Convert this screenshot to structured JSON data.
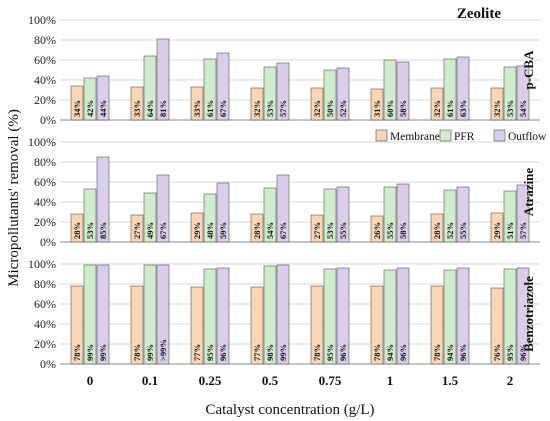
{
  "chart_data": {
    "type": "bar",
    "title": "Zeolite",
    "xlabel": "Catalyst concentration (g/L)",
    "ylabel": "Micropollutants' removal (%)",
    "categories": [
      "0",
      "0.1",
      "0.25",
      "0.5",
      "0.75",
      "1",
      "1.5",
      "2"
    ],
    "ylim": [
      0,
      100
    ],
    "yticks": [
      "0%",
      "20%",
      "40%",
      "60%",
      "80%",
      "100%"
    ],
    "legend": [
      "Membrane",
      "PFR",
      "Outflow"
    ],
    "colors": {
      "Membrane": "#f9d5b3",
      "PFR": "#cfeccb",
      "Outflow": "#d9cdeb",
      "edge": "#555555",
      "grid": "#d9d9d9"
    },
    "panels": [
      {
        "name": "p-CBA",
        "series": [
          {
            "name": "Membrane",
            "values": [
              34,
              33,
              33,
              32,
              32,
              31,
              32,
              32
            ],
            "labels": [
              "34%",
              "33%",
              "33%",
              "32%",
              "32%",
              "31%",
              "32%",
              "32%"
            ]
          },
          {
            "name": "PFR",
            "values": [
              42,
              64,
              61,
              53,
              50,
              60,
              61,
              53
            ],
            "labels": [
              "42%",
              "64%",
              "61%",
              "53%",
              "50%",
              "60%",
              "61%",
              "53%"
            ]
          },
          {
            "name": "Outflow",
            "values": [
              44,
              81,
              67,
              57,
              52,
              58,
              63,
              54
            ],
            "labels": [
              "44%",
              "81%",
              "67%",
              "57%",
              "52%",
              "58%",
              "63%",
              "54%"
            ]
          }
        ]
      },
      {
        "name": "Atrazine",
        "series": [
          {
            "name": "Membrane",
            "values": [
              28,
              27,
              29,
              28,
              27,
              26,
              28,
              29
            ],
            "labels": [
              "28%",
              "27%",
              "29%",
              "28%",
              "27%",
              "26%",
              "28%",
              "29%"
            ]
          },
          {
            "name": "PFR",
            "values": [
              53,
              49,
              48,
              54,
              53,
              55,
              52,
              51
            ],
            "labels": [
              "53%",
              "49%",
              "48%",
              "54%",
              "53%",
              "55%",
              "52%",
              "51%"
            ]
          },
          {
            "name": "Outflow",
            "values": [
              85,
              67,
              59,
              67,
              55,
              58,
              55,
              57
            ],
            "labels": [
              "85%",
              "67%",
              "59%",
              "67%",
              "55%",
              "58%",
              "55%",
              "57%"
            ]
          }
        ]
      },
      {
        "name": "Benzotriazole",
        "series": [
          {
            "name": "Membrane",
            "values": [
              78,
              78,
              77,
              77,
              78,
              78,
              78,
              76
            ],
            "labels": [
              "78%",
              "78%",
              "77%",
              "77%",
              "78%",
              "78%",
              "78%",
              "76%"
            ]
          },
          {
            "name": "PFR",
            "values": [
              99,
              99,
              95,
              98,
              95,
              94,
              94,
              95
            ],
            "labels": [
              "99%",
              "99%",
              "95%",
              "98%",
              "95%",
              "94%",
              "94%",
              "95%"
            ]
          },
          {
            "name": "Outflow",
            "values": [
              99,
              99,
              96,
              99,
              96,
              96,
              96,
              96
            ],
            "labels": [
              "99%",
              ">99%",
              "96%",
              "99%",
              "96%",
              "96%",
              "96%",
              "96%"
            ]
          }
        ]
      }
    ]
  }
}
